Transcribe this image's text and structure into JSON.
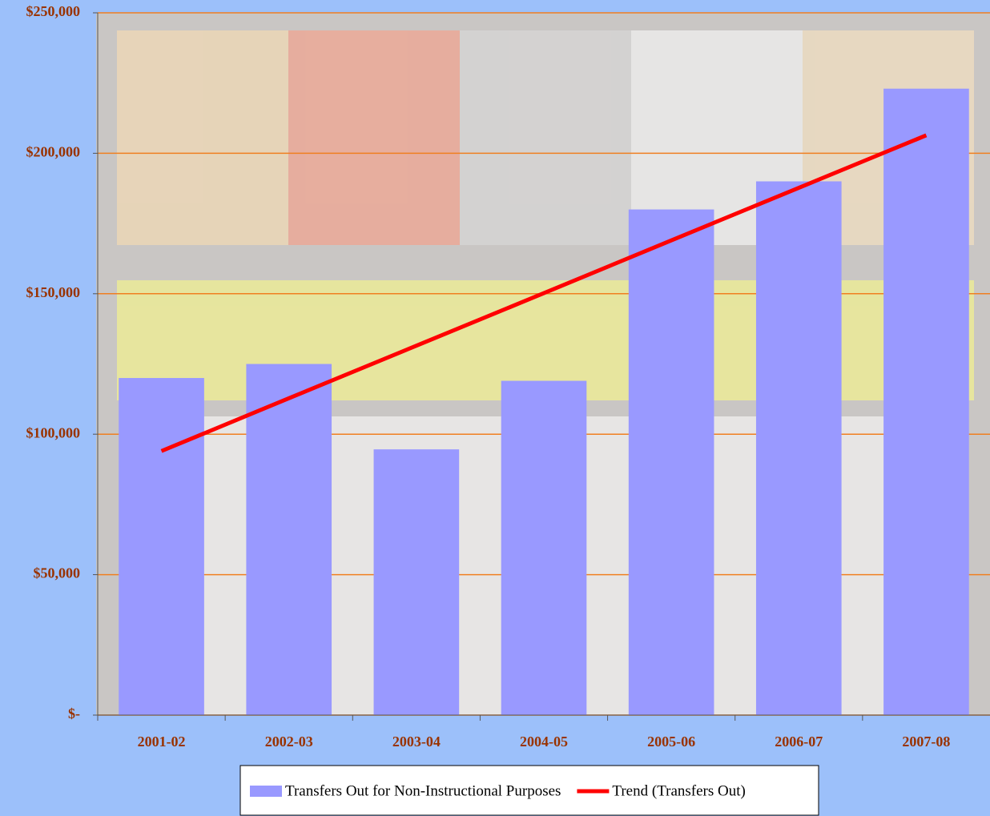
{
  "chart_data": {
    "type": "bar",
    "categories": [
      "2001-02",
      "2002-03",
      "2003-04",
      "2004-05",
      "2005-06",
      "2006-07",
      "2007-08"
    ],
    "series": [
      {
        "name": "Transfers Out for Non-Instructional Purposes",
        "type": "bar",
        "color": "#9999ff",
        "values": [
          120000,
          125000,
          94600,
          119000,
          180000,
          190000,
          223000
        ]
      },
      {
        "name": "Trend (Transfers Out)",
        "type": "line",
        "color": "#ff0000",
        "values": [
          94000,
          112800,
          131500,
          150200,
          169000,
          187700,
          206400
        ]
      }
    ],
    "ylim": [
      0,
      250000
    ],
    "yticks": [
      {
        "value": 0,
        "label": "$-"
      },
      {
        "value": 50000,
        "label": "$50,000"
      },
      {
        "value": 100000,
        "label": "$100,000"
      },
      {
        "value": 150000,
        "label": "$150,000"
      },
      {
        "value": 200000,
        "label": "$200,000"
      },
      {
        "value": 250000,
        "label": "$250,000"
      }
    ],
    "grid": true,
    "legend": "bottom"
  }
}
